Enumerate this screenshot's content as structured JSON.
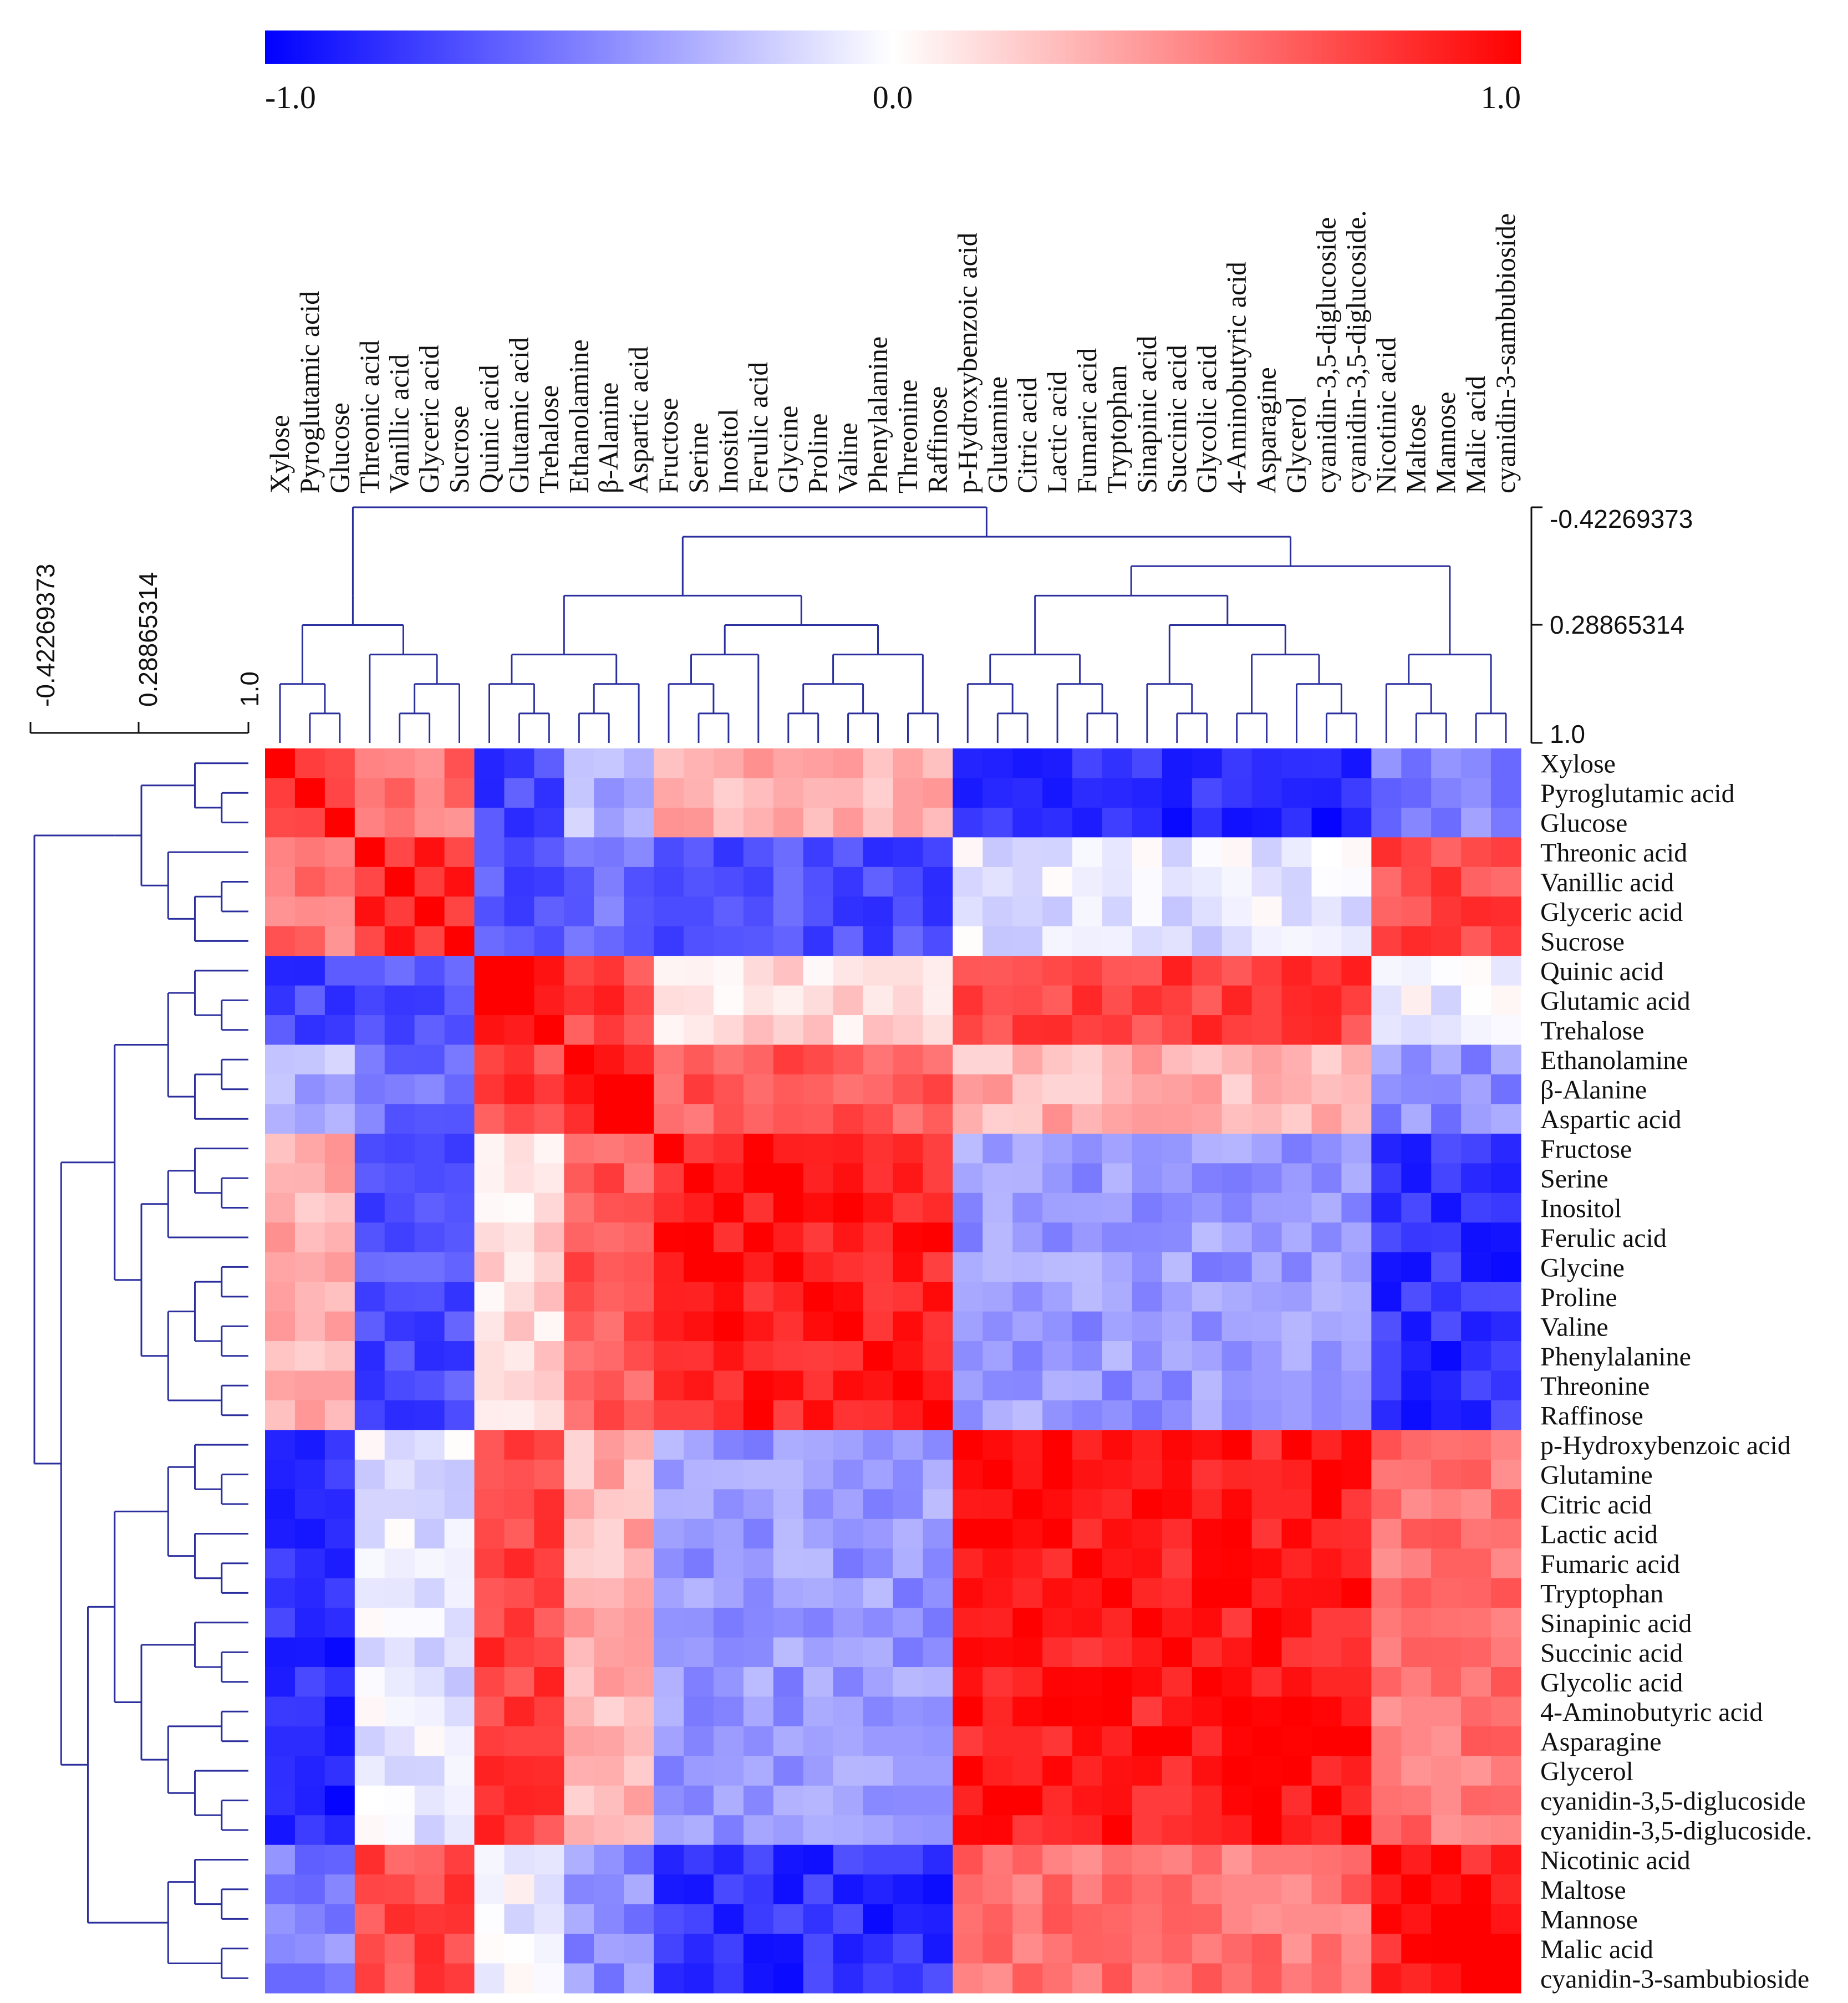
{
  "chart_data": {
    "type": "heatmap",
    "title": "",
    "variables": [
      "Xylose",
      "Pyroglutamic acid",
      "Glucose",
      "Threonic acid",
      "Vanillic acid",
      "Glyceric acid",
      "Sucrose",
      "Quinic acid",
      "Glutamic acid",
      "Trehalose",
      "Ethanolamine",
      "β-Alanine",
      "Aspartic acid",
      "Fructose",
      "Serine",
      "Inositol",
      "Ferulic acid",
      "Glycine",
      "Proline",
      "Valine",
      "Phenylalanine",
      "Threonine",
      "Raffinose",
      "p-Hydroxybenzoic acid",
      "Glutamine",
      "Citric acid",
      "Lactic acid",
      "Fumaric acid",
      "Tryptophan",
      "Sinapinic acid",
      "Succinic acid",
      "Glycolic acid",
      "4-Aminobutyric acid",
      "Asparagine",
      "Glycerol",
      "cyanidin-3,5-diglucoside",
      "cyanidin-3,5-diglucoside.",
      "Nicotinic acid",
      "Maltose",
      "Mannose",
      "Malic acid",
      "cyanidin-3-sambubioside"
    ],
    "cluster_groups": [
      "A",
      "A",
      "A",
      "B",
      "B",
      "B",
      "B",
      "C",
      "C",
      "C",
      "D",
      "D",
      "D",
      "E",
      "E",
      "E",
      "E",
      "E",
      "E",
      "E",
      "E",
      "E",
      "E",
      "F",
      "F",
      "F",
      "F",
      "F",
      "F",
      "F",
      "F",
      "F",
      "F",
      "F",
      "F",
      "F",
      "F",
      "G",
      "G",
      "G",
      "G",
      "G"
    ],
    "block_correlation": {
      "A": {
        "A": 0.85,
        "B": 0.55,
        "C": -0.75,
        "D": -0.3,
        "E": 0.3,
        "F": -0.85,
        "G": -0.5
      },
      "B": {
        "A": 0.55,
        "B": 0.85,
        "C": -0.65,
        "D": -0.6,
        "E": -0.7,
        "F": -0.1,
        "G": 0.7
      },
      "C": {
        "A": -0.75,
        "B": -0.65,
        "C": 0.92,
        "D": 0.75,
        "E": 0.15,
        "F": 0.75,
        "G": -0.05
      },
      "D": {
        "A": -0.3,
        "B": -0.6,
        "C": 0.75,
        "D": 0.92,
        "E": 0.65,
        "F": 0.3,
        "G": -0.45
      },
      "E": {
        "A": 0.3,
        "B": -0.7,
        "C": 0.15,
        "D": 0.65,
        "E": 0.88,
        "F": -0.4,
        "G": -0.82
      },
      "F": {
        "A": -0.85,
        "B": -0.1,
        "C": 0.75,
        "D": 0.3,
        "E": -0.4,
        "F": 0.9,
        "G": 0.55
      },
      "G": {
        "A": -0.5,
        "B": 0.7,
        "C": -0.05,
        "D": -0.45,
        "E": -0.82,
        "F": 0.55,
        "G": 0.9
      }
    },
    "colorbar": {
      "min": -1.0,
      "mid": 0.0,
      "max": 1.0,
      "min_label": "-1.0",
      "mid_label": "0.0",
      "max_label": "1.0",
      "low_color": "#0000ff",
      "mid_color": "#ffffff",
      "high_color": "#ff0000"
    },
    "dendrogram_scale_labels": [
      "-0.42269373",
      "0.28865314",
      "1.0"
    ],
    "dendrogram_color": "#2b2f9e"
  }
}
